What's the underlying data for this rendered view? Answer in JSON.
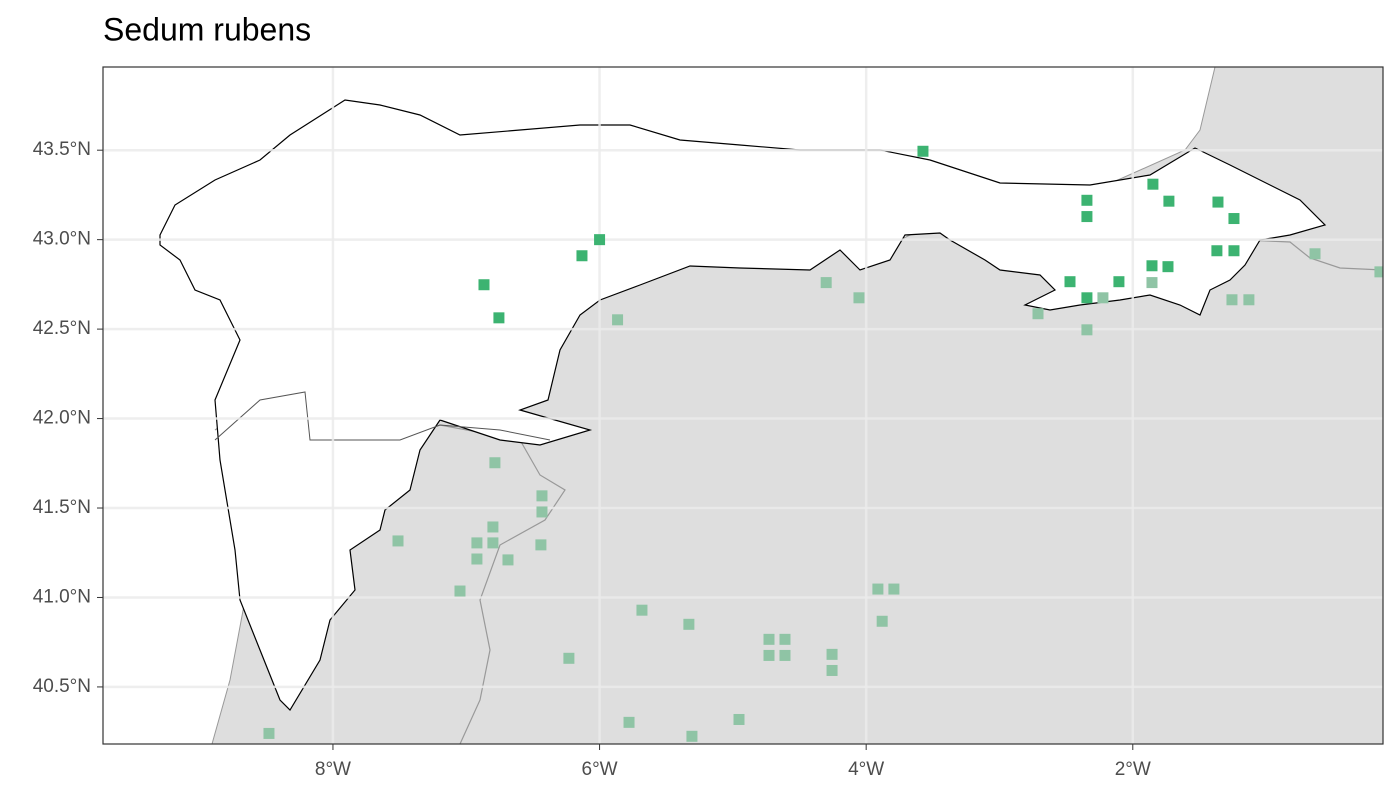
{
  "chart_data": {
    "type": "scatter",
    "title": "Sedum rubens",
    "xlim": [
      -9.725,
      -0.123
    ],
    "ylim": [
      40.181,
      43.965
    ],
    "xticks": [
      {
        "value": -8,
        "label": "8°W"
      },
      {
        "value": -6,
        "label": "6°W"
      },
      {
        "value": -4,
        "label": "4°W"
      },
      {
        "value": -2,
        "label": "2°W"
      }
    ],
    "yticks": [
      {
        "value": 40.5,
        "label": "40.5°N"
      },
      {
        "value": 41.0,
        "label": "41.0°N"
      },
      {
        "value": 41.5,
        "label": "41.5°N"
      },
      {
        "value": 42.0,
        "label": "42.0°N"
      },
      {
        "value": 42.5,
        "label": "42.5°N"
      },
      {
        "value": 43.0,
        "label": "43.0°N"
      },
      {
        "value": 43.5,
        "label": "43.5°N"
      }
    ],
    "grid": true,
    "series": [
      {
        "color": "#3cb371",
        "x": [
          -3.574,
          -6.867,
          -6.755,
          -6.132,
          -6.0,
          -2.344,
          -2.344,
          -1.849,
          -1.729,
          -1.361,
          -1.241,
          -1.369,
          -1.241,
          -2.471,
          -2.104,
          -1.856,
          -1.736,
          -2.344
        ],
        "y": [
          43.494,
          42.748,
          42.563,
          42.91,
          43.0,
          43.22,
          43.129,
          43.31,
          43.215,
          43.21,
          43.118,
          42.938,
          42.938,
          42.765,
          42.765,
          42.854,
          42.849,
          42.675
        ]
      },
      {
        "color": "#8fc4a5",
        "x": [
          -2.711,
          -2.344,
          -2.224,
          -1.856,
          -1.256,
          -1.129,
          -0.633,
          -0.146,
          -4.3,
          -4.054,
          -5.865,
          -6.785,
          -6.432,
          -6.432,
          -6.8,
          -7.512,
          -6.92,
          -6.8,
          -6.44,
          -6.92,
          -6.687,
          -7.047,
          -3.912,
          -3.792,
          -5.682,
          -3.88,
          -5.33,
          -4.729,
          -4.609,
          -4.729,
          -4.609,
          -4.256,
          -4.256,
          -6.23,
          -4.954,
          -5.779,
          -5.307,
          -8.48
        ],
        "y": [
          42.586,
          42.496,
          42.675,
          42.76,
          42.664,
          42.664,
          42.921,
          42.82,
          42.76,
          42.675,
          42.552,
          41.753,
          41.568,
          41.478,
          41.394,
          41.316,
          41.305,
          41.305,
          41.294,
          41.215,
          41.21,
          41.036,
          41.047,
          41.047,
          40.929,
          40.867,
          40.85,
          40.766,
          40.766,
          40.676,
          40.676,
          40.682,
          40.592,
          40.66,
          40.318,
          40.302,
          40.224,
          40.24
        ]
      }
    ]
  }
}
